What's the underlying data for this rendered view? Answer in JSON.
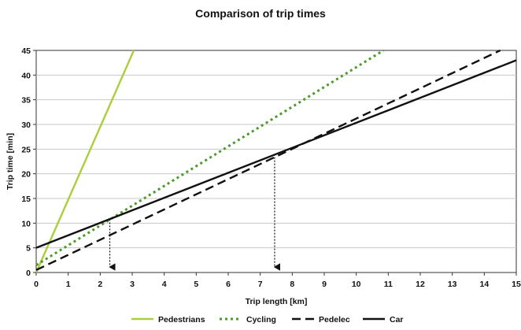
{
  "chart_data": {
    "type": "line",
    "title": "Comparison of trip times",
    "xlabel": "Trip length [km]",
    "ylabel": "Trip time [min]",
    "xlim": [
      0,
      15
    ],
    "ylim": [
      0,
      45
    ],
    "xticks": [
      "0",
      "1",
      "2",
      "3",
      "4",
      "5",
      "6",
      "7",
      "8",
      "9",
      "10",
      "11",
      "12",
      "13",
      "14",
      "15"
    ],
    "yticks": [
      "0",
      "5",
      "10",
      "15",
      "20",
      "25",
      "30",
      "35",
      "40",
      "45"
    ],
    "grid": "horizontal",
    "legend_position": "bottom",
    "series": [
      {
        "name": "Pedestrians",
        "style": "solid",
        "color": "#a9cf3b",
        "x": [
          0,
          3.05
        ],
        "y": [
          0,
          45
        ]
      },
      {
        "name": "Cycling",
        "style": "dotted",
        "color": "#4c9a2a",
        "x": [
          0,
          10.85
        ],
        "y": [
          1.5,
          45
        ]
      },
      {
        "name": "Pedelec",
        "style": "dashed",
        "color": "#111111",
        "x": [
          0,
          14.5
        ],
        "y": [
          0.5,
          45
        ]
      },
      {
        "name": "Car",
        "style": "solid",
        "color": "#111111",
        "x": [
          0,
          15
        ],
        "y": [
          5,
          43
        ]
      }
    ],
    "annotations": [
      {
        "type": "drop-arrow",
        "x": 2.3,
        "y_from": 10.8,
        "y_to": 0
      },
      {
        "type": "drop-arrow",
        "x": 7.45,
        "y_from": 24,
        "y_to": 0
      }
    ]
  }
}
